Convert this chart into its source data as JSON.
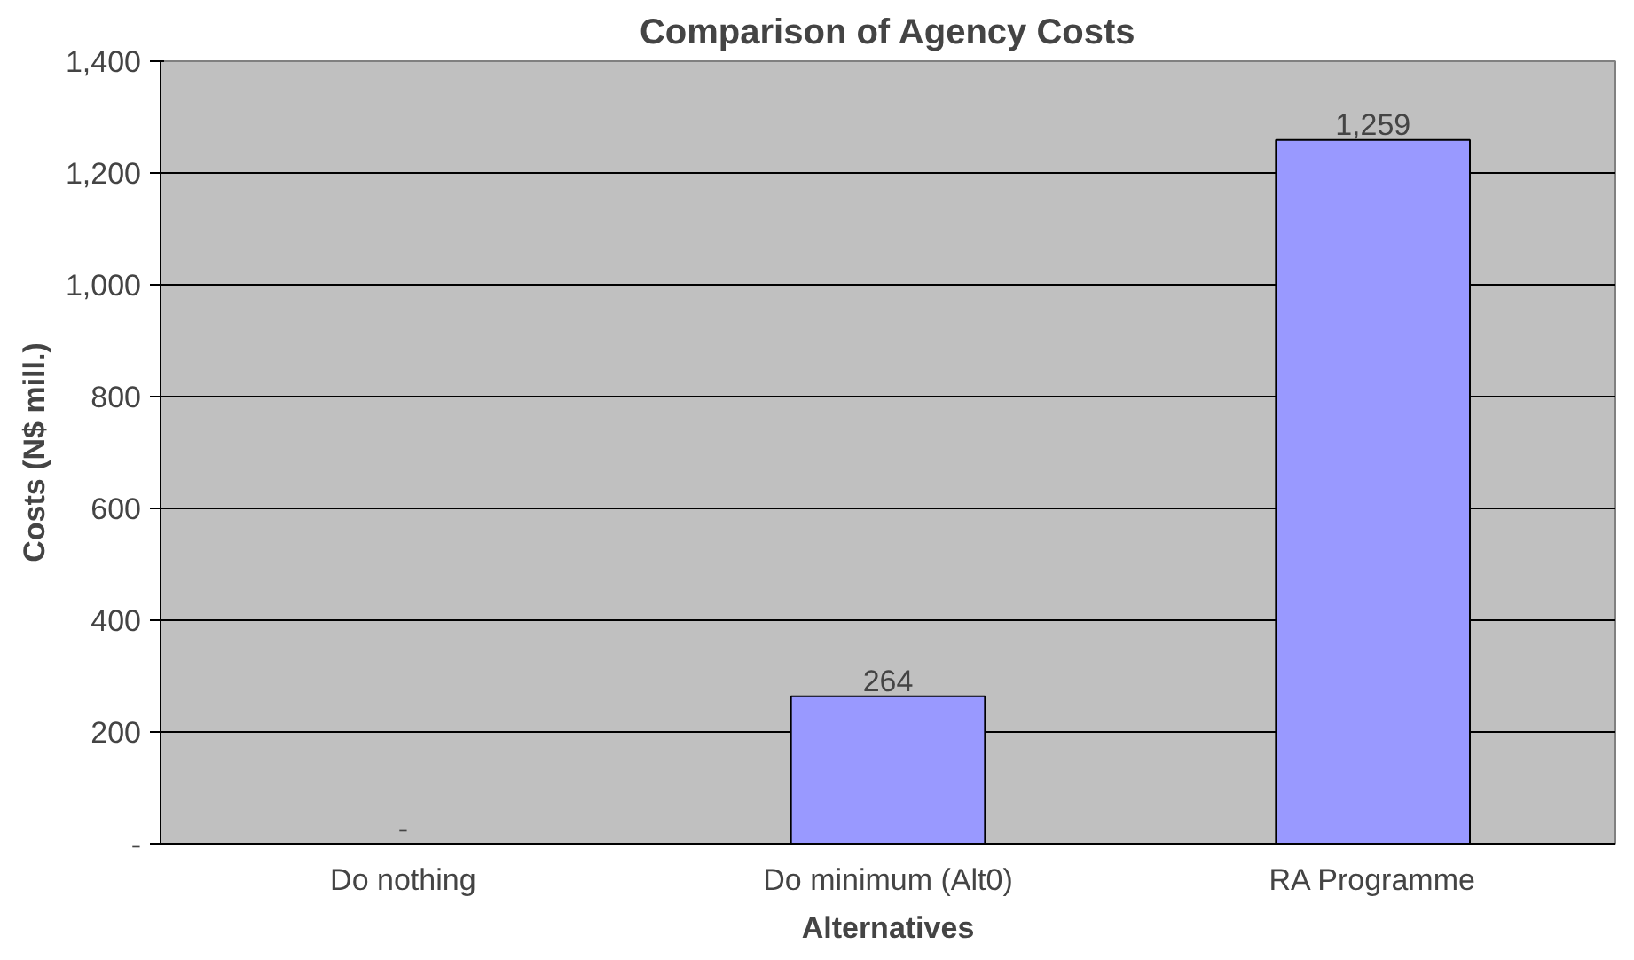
{
  "chart_data": {
    "type": "bar",
    "title": "Comparison of Agency Costs",
    "xlabel": "Alternatives",
    "ylabel": "Costs (N$ mill.)",
    "categories": [
      "Do nothing",
      "Do minimum (Alt0)",
      "RA Programme"
    ],
    "values": [
      0,
      264,
      1259
    ],
    "value_labels": [
      "-",
      "264",
      "1,259"
    ],
    "color": "#9999ff",
    "ylim": [
      0,
      1400
    ],
    "yticks": [
      {
        "value": 0,
        "label": "-"
      },
      {
        "value": 200,
        "label": "200"
      },
      {
        "value": 400,
        "label": "400"
      },
      {
        "value": 600,
        "label": "600"
      },
      {
        "value": 800,
        "label": "800"
      },
      {
        "value": 1000,
        "label": "1,000"
      },
      {
        "value": 1200,
        "label": "1,200"
      },
      {
        "value": 1400,
        "label": "1,400"
      }
    ],
    "grid": "y"
  }
}
